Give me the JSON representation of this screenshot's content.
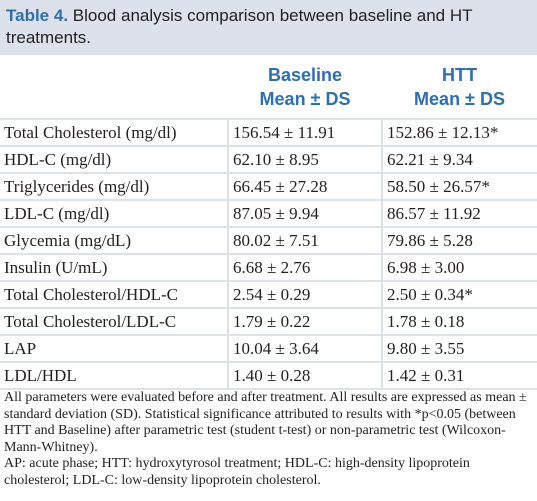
{
  "caption": {
    "label": "Table 4.",
    "text": "Blood analysis comparison between baseline and HT treatments."
  },
  "header": {
    "col2_line1": "Baseline",
    "col2_line2": "Mean ± DS",
    "col3_line1": "HTT",
    "col3_line2": "Mean ± DS"
  },
  "rows": [
    {
      "param": "Total Cholesterol (mg/dl)",
      "baseline": "156.54 ± 11.91",
      "htt": "152.86 ± 12.13*"
    },
    {
      "param": "HDL-C (mg/dl)",
      "baseline": "62.10 ± 8.95",
      "htt": "62.21 ± 9.34"
    },
    {
      "param": "Triglycerides (mg/dl)",
      "baseline": "66.45 ± 27.28",
      "htt": "58.50 ± 26.57*"
    },
    {
      "param": "LDL-C (mg/dl)",
      "baseline": "87.05 ± 9.94",
      "htt": "86.57 ± 11.92"
    },
    {
      "param": "Glycemia (mg/dL)",
      "baseline": "80.02 ± 7.51",
      "htt": "79.86 ± 5.28"
    },
    {
      "param": "Insulin (U/mL)",
      "baseline": "6.68 ± 2.76",
      "htt": "6.98 ± 3.00"
    },
    {
      "param": "Total Cholesterol/HDL-C",
      "baseline": "2.54 ± 0.29",
      "htt": "2.50 ± 0.34*"
    },
    {
      "param": "Total Cholesterol/LDL-C",
      "baseline": "1.79 ± 0.22",
      "htt": "1.78 ± 0.18"
    },
    {
      "param": "LAP",
      "baseline": "10.04 ± 3.64",
      "htt": "9.80 ± 3.55"
    },
    {
      "param": "LDL/HDL",
      "baseline": "1.40 ± 0.28",
      "htt": "1.42 ± 0.31"
    }
  ],
  "footnote": {
    "para1": "All parameters were evaluated before and after treatment. All results are expressed as mean ± standard deviation (SD). Statistical significance attributed to results with *p<0.05 (between HTT and Baseline) after parametric test (student t-test) or non-parametric test (Wilcoxon-Mann-Whitney).",
    "para2": "AP: acute phase; HTT: hydroxytyrosol treatment; HDL-C: high-density lipoprotein cholesterol; LDL-C: low-density lipoprotein cholesterol."
  }
}
